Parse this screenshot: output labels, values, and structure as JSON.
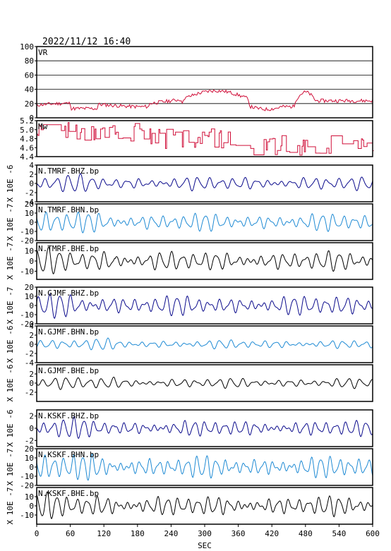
{
  "timestamp": "2022/11/12  16:40",
  "colors": {
    "frame": "#000000",
    "red": "#d0103a",
    "navy": "#0a0a8c",
    "cyan": "#1e8ad4",
    "black": "#000000"
  },
  "chart_data": [
    {
      "type": "line",
      "label": "VR",
      "ylim": [
        0,
        100
      ],
      "ticks": [
        0,
        20,
        40,
        60,
        80,
        100
      ],
      "tick_labels": [
        "0",
        "20",
        "40",
        "60",
        "80",
        "100"
      ],
      "grid": true,
      "color": "red",
      "kind": "vr"
    },
    {
      "type": "line",
      "label": "Mw",
      "ylim": [
        4.4,
        5.2
      ],
      "ticks": [
        4.4,
        4.6,
        4.8,
        5.0,
        5.2
      ],
      "tick_labels": [
        "4.4",
        "4.6",
        "4.8",
        "5.0",
        "5.2"
      ],
      "grid": false,
      "color": "red",
      "kind": "mw"
    },
    {
      "type": "line",
      "label": "N.TMRF.BHZ.bp",
      "ylim": [
        -4,
        4
      ],
      "ticks": [
        -4,
        -2,
        0,
        2,
        4
      ],
      "tick_labels": [
        "-4",
        "-2",
        "0",
        "2",
        "4"
      ],
      "unit": "X 10E -6",
      "color": "navy",
      "kind": "wave",
      "amp": 1.4,
      "seed": 1,
      "period": 21
    },
    {
      "type": "line",
      "label": "N.TMRF.BHN.bp",
      "ylim": [
        -20,
        20
      ],
      "ticks": [
        -20,
        -10,
        0,
        10,
        20
      ],
      "tick_labels": [
        "-20",
        "-10",
        "0",
        "10",
        "20"
      ],
      "unit": "X 10E -7",
      "color": "cyan",
      "kind": "wave",
      "amp": 9,
      "seed": 2,
      "period": 19
    },
    {
      "type": "line",
      "label": "N.TMRF.BHE.bp",
      "ylim": [
        -18,
        18
      ],
      "ticks": [
        -10,
        0,
        10
      ],
      "tick_labels": [
        "-10",
        "0",
        "10"
      ],
      "unit": "X 10E -7",
      "color": "black",
      "kind": "wave",
      "amp": 9,
      "seed": 3,
      "period": 20
    },
    {
      "type": "line",
      "label": "N.GJMF.BHZ.bp",
      "ylim": [
        -20,
        20
      ],
      "ticks": [
        -20,
        -10,
        0,
        10,
        20
      ],
      "tick_labels": [
        "-20",
        "-10",
        "0",
        "10",
        "20"
      ],
      "unit": "X 10E -7",
      "color": "navy",
      "kind": "wave",
      "amp": 10,
      "seed": 4,
      "period": 19
    },
    {
      "type": "line",
      "label": "N.GJMF.BHN.bp",
      "ylim": [
        -4,
        4
      ],
      "ticks": [
        -4,
        -2,
        0,
        2,
        4
      ],
      "tick_labels": [
        "-4",
        "-2",
        "0",
        "2",
        "4"
      ],
      "unit": "X 10E -6",
      "color": "cyan",
      "kind": "wave",
      "amp": 0.9,
      "seed": 5,
      "period": 20
    },
    {
      "type": "line",
      "label": "N.GJMF.BHE.bp",
      "ylim": [
        -4,
        4
      ],
      "ticks": [
        -2,
        0,
        2
      ],
      "tick_labels": [
        "-2",
        "0",
        "2"
      ],
      "unit": "X 10E -6",
      "color": "black",
      "kind": "wave",
      "amp": 1.0,
      "seed": 6,
      "period": 21
    },
    {
      "type": "line",
      "label": "N.KSKF.BHZ.bp",
      "ylim": [
        -3,
        3
      ],
      "ticks": [
        -2,
        0,
        2
      ],
      "tick_labels": [
        "-2",
        "0",
        "2"
      ],
      "unit": "X 10E -6",
      "color": "navy",
      "kind": "wave",
      "amp": 1.2,
      "seed": 7,
      "period": 18
    },
    {
      "type": "line",
      "label": "N.KSKF.BHN.bp",
      "ylim": [
        -20,
        20
      ],
      "ticks": [
        -20,
        -10,
        0,
        10,
        20
      ],
      "tick_labels": [
        "-20",
        "-10",
        "0",
        "10",
        "20"
      ],
      "unit": "X 10E -7",
      "color": "cyan",
      "kind": "wave",
      "amp": 11,
      "seed": 8,
      "period": 17
    },
    {
      "type": "line",
      "label": "N.KSKF.BHE.bp",
      "ylim": [
        -20,
        20
      ],
      "ticks": [
        -10,
        0,
        10
      ],
      "tick_labels": [
        "-10",
        "0",
        "10"
      ],
      "unit": "X 10E -7",
      "color": "black",
      "kind": "wave",
      "amp": 10,
      "seed": 9,
      "period": 18
    }
  ],
  "xaxis": {
    "label": "SEC",
    "xlim": [
      0,
      600
    ],
    "ticks": [
      0,
      60,
      120,
      180,
      240,
      300,
      360,
      420,
      480,
      540,
      600
    ]
  }
}
